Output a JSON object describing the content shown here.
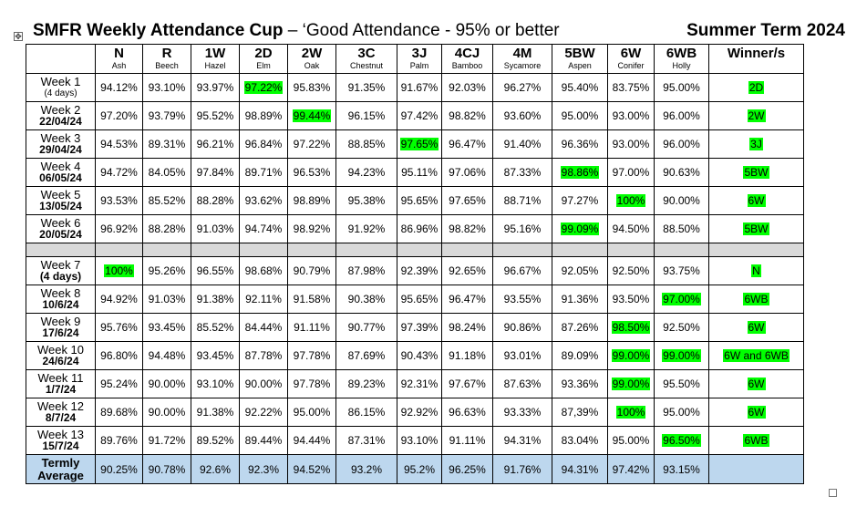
{
  "title": {
    "bold": "SMFR Weekly Attendance Cup",
    "rest": " – ‘Good Attendance - 95% or better",
    "term": "Summer Term 2024"
  },
  "table": {
    "classes": [
      {
        "code": "N",
        "name": "Ash"
      },
      {
        "code": "R",
        "name": "Beech"
      },
      {
        "code": "1W",
        "name": "Hazel"
      },
      {
        "code": "2D",
        "name": "Elm"
      },
      {
        "code": "2W",
        "name": "Oak"
      },
      {
        "code": "3C",
        "name": "Chestnut"
      },
      {
        "code": "3J",
        "name": "Palm"
      },
      {
        "code": "4CJ",
        "name": "Bamboo"
      },
      {
        "code": "4M",
        "name": "Sycamore"
      },
      {
        "code": "5BW",
        "name": "Aspen"
      },
      {
        "code": "6W",
        "name": "Conifer"
      },
      {
        "code": "6WB",
        "name": "Holly"
      }
    ],
    "winner_header": "Winner/s",
    "weeks": [
      {
        "label": "Week 1",
        "sub": "(4 days)",
        "sub_style": "small",
        "values": [
          "94.12%",
          "93.10%",
          "93.97%",
          "97.22%",
          "95.83%",
          "91.35%",
          "91.67%",
          "92.03%",
          "96.27%",
          "95.40%",
          "83.75%",
          "95.00%"
        ],
        "hl": [
          3
        ],
        "winner": "2D"
      },
      {
        "label": "Week 2",
        "sub": "22/04/24",
        "sub_style": "strong",
        "values": [
          "97.20%",
          "93.79%",
          "95.52%",
          "98.89%",
          "99.44%",
          "96.15%",
          "97.42%",
          "98.82%",
          "93.60%",
          "95.00%",
          "93.00%",
          "96.00%"
        ],
        "hl": [
          4
        ],
        "winner": "2W"
      },
      {
        "label": "Week 3",
        "sub": "29/04/24",
        "sub_style": "strong",
        "values": [
          "94.53%",
          "89.31%",
          "96.21%",
          "96.84%",
          "97.22%",
          "88.85%",
          "97.65%",
          "96.47%",
          "91.40%",
          "96.36%",
          "93.00%",
          "96.00%"
        ],
        "hl": [
          6
        ],
        "winner": "3J"
      },
      {
        "label": "Week 4",
        "sub": "06/05/24",
        "sub_style": "strong",
        "values": [
          "94.72%",
          "84.05%",
          "97.84%",
          "89.71%",
          "96.53%",
          "94.23%",
          "95.11%",
          "97.06%",
          "87.33%",
          "98.86%",
          "97.00%",
          "90.63%"
        ],
        "hl": [
          9
        ],
        "winner": "5BW"
      },
      {
        "label": "Week 5",
        "sub": "13/05/24",
        "sub_style": "strong",
        "values": [
          "93.53%",
          "85.52%",
          "88.28%",
          "93.62%",
          "98.89%",
          "95.38%",
          "95.65%",
          "97.65%",
          "88.71%",
          "97.27%",
          "100%",
          "90.00%"
        ],
        "hl": [
          10
        ],
        "winner": "6W"
      },
      {
        "label": "Week 6",
        "sub": "20/05/24",
        "sub_style": "strong",
        "values": [
          "96.92%",
          "88.28%",
          "91.03%",
          "94.74%",
          "98.92%",
          "91.92%",
          "86.96%",
          "98.82%",
          "95.16%",
          "99.09%",
          "94.50%",
          "88.50%"
        ],
        "hl": [
          9
        ],
        "winner": "5BW"
      }
    ],
    "weeks2": [
      {
        "label": "Week 7",
        "sub": "(4 days)",
        "sub_style": "strong",
        "values": [
          "100%",
          "95.26%",
          "96.55%",
          "98.68%",
          "90.79%",
          "87.98%",
          "92.39%",
          "92.65%",
          "96.67%",
          "92.05%",
          "92.50%",
          "93.75%"
        ],
        "hl": [
          0
        ],
        "winner": "N"
      },
      {
        "label": "Week 8",
        "sub": "10/6/24",
        "sub_style": "strong",
        "values": [
          "94.92%",
          "91.03%",
          "91.38%",
          "92.11%",
          "91.58%",
          "90.38%",
          "95.65%",
          "96.47%",
          "93.55%",
          "91.36%",
          "93.50%",
          "97.00%"
        ],
        "hl": [
          11
        ],
        "winner": "6WB"
      },
      {
        "label": "Week 9",
        "sub": "17/6/24",
        "sub_style": "strong",
        "values": [
          "95.76%",
          "93.45%",
          "85.52%",
          "84.44%",
          "91.11%",
          "90.77%",
          "97.39%",
          "98.24%",
          "90.86%",
          "87.26%",
          "98.50%",
          "92.50%"
        ],
        "hl": [
          10
        ],
        "winner": "6W"
      },
      {
        "label": "Week 10",
        "sub": "24/6/24",
        "sub_style": "strong",
        "values": [
          "96.80%",
          "94.48%",
          "93.45%",
          "87.78%",
          "97.78%",
          "87.69%",
          "90.43%",
          "91.18%",
          "93.01%",
          "89.09%",
          "99.00%",
          "99.00%"
        ],
        "hl": [
          10,
          11
        ],
        "winner": "6W and 6WB"
      },
      {
        "label": "Week 11",
        "sub": "1/7/24",
        "sub_style": "strong",
        "values": [
          "95.24%",
          "90.00%",
          "93.10%",
          "90.00%",
          "97.78%",
          "89.23%",
          "92.31%",
          "97.67%",
          "87.63%",
          "93.36%",
          "99.00%",
          "95.50%"
        ],
        "hl": [
          10
        ],
        "winner": "6W"
      },
      {
        "label": "Week 12",
        "sub": "8/7/24",
        "sub_style": "strong",
        "values": [
          "89.68%",
          "90.00%",
          "91.38%",
          "92.22%",
          "95.00%",
          "86.15%",
          "92.92%",
          "96.63%",
          "93.33%",
          "87,39%",
          "100%",
          "95.00%"
        ],
        "hl": [
          10
        ],
        "winner": "6W"
      },
      {
        "label": "Week 13",
        "sub": "15/7/24",
        "sub_style": "strong",
        "values": [
          "89.76%",
          "91.72%",
          "89.52%",
          "89.44%",
          "94.44%",
          "87.31%",
          "93.10%",
          "91.11%",
          "94.31%",
          "83.04%",
          "95.00%",
          "96.50%"
        ],
        "hl": [
          11
        ],
        "winner": "6WB"
      }
    ],
    "average": {
      "label1": "Termly",
      "label2": "Average",
      "values": [
        "90.25%",
        "90.78%",
        "92.6%",
        "92.3%",
        "94.52%",
        "93.2%",
        "95.2%",
        "96.25%",
        "91.76%",
        "94.31%",
        "97.42%",
        "93.15%"
      ],
      "winner": ""
    }
  },
  "colors": {
    "highlight": "#00ff00",
    "separator": "#d9d9d9",
    "average_row": "#bdd7ee"
  },
  "icons": {
    "anchor": "move-anchor-icon",
    "resize": "resize-handle-icon"
  }
}
